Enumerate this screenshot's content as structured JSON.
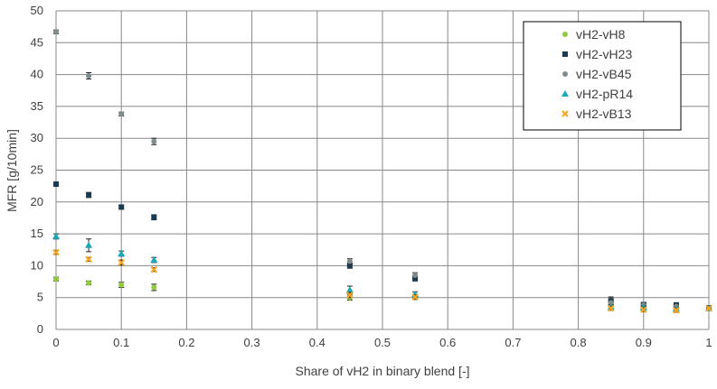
{
  "chart_data": {
    "type": "scatter",
    "title": "",
    "xlabel": "Share of vH2 in binary blend   [-]",
    "ylabel": "MFR  [g/10min]",
    "xlim": [
      0,
      1
    ],
    "ylim": [
      0,
      50
    ],
    "x_ticks": [
      "0",
      "0.1",
      "0.2",
      "0.3",
      "0.4",
      "0.5",
      "0.6",
      "0.7",
      "0.8",
      "0.9",
      "1"
    ],
    "y_ticks": [
      "0",
      "5",
      "10",
      "15",
      "20",
      "25",
      "30",
      "35",
      "40",
      "45",
      "50"
    ],
    "grid": true,
    "legend_position": "top-right",
    "series": [
      {
        "name": "vH2-vH8",
        "color": "#92c83e",
        "marker": "circle",
        "x": [
          0,
          0.05,
          0.1,
          0.15,
          0.45,
          0.55,
          0.85,
          0.9,
          0.95,
          1
        ],
        "y": [
          7.9,
          7.3,
          7.0,
          6.6,
          5.0,
          5.1,
          3.9,
          3.6,
          3.4,
          3.3
        ],
        "err": [
          0.3,
          0.3,
          0.4,
          0.5,
          0.4,
          0.4,
          0.3,
          0.3,
          0.3,
          0.2
        ]
      },
      {
        "name": "vH2-vH23",
        "color": "#1a3a52",
        "marker": "square",
        "x": [
          0,
          0.05,
          0.1,
          0.15,
          0.45,
          0.55,
          0.85,
          0.9,
          0.95,
          1
        ],
        "y": [
          22.8,
          21.1,
          19.2,
          17.6,
          10.0,
          8.0,
          4.5,
          3.9,
          3.8,
          3.4
        ],
        "err": [
          0.3,
          0.4,
          0.3,
          0.4,
          0.4,
          0.4,
          0.6,
          0.3,
          0.4,
          0.2
        ]
      },
      {
        "name": "vH2-vB45",
        "color": "#7f8c8d",
        "marker": "circle",
        "x": [
          0,
          0.05,
          0.1,
          0.15,
          0.45,
          0.55,
          0.85,
          0.9,
          0.95,
          1
        ],
        "y": [
          46.7,
          39.8,
          33.8,
          29.5,
          10.7,
          8.5,
          4.2,
          3.8,
          3.6,
          3.3
        ],
        "err": [
          0.3,
          0.5,
          0.3,
          0.5,
          0.4,
          0.4,
          0.3,
          0.3,
          0.3,
          0.2
        ]
      },
      {
        "name": "vH2-pR14",
        "color": "#17a9ba",
        "marker": "triangle",
        "x": [
          0,
          0.05,
          0.1,
          0.15,
          0.45,
          0.55,
          0.85,
          0.9,
          0.95,
          1
        ],
        "y": [
          14.6,
          13.2,
          11.9,
          10.9,
          6.2,
          5.5,
          3.5,
          3.4,
          3.2,
          3.3
        ],
        "err": [
          0.4,
          1.0,
          0.4,
          0.4,
          0.6,
          0.4,
          0.3,
          0.3,
          0.3,
          0.2
        ]
      },
      {
        "name": "vH2-vB13",
        "color": "#f5a623",
        "marker": "x",
        "x": [
          0,
          0.05,
          0.1,
          0.15,
          0.45,
          0.55,
          0.85,
          0.9,
          0.95,
          1
        ],
        "y": [
          12.1,
          11.0,
          10.5,
          9.4,
          5.4,
          5.1,
          3.3,
          3.1,
          3.0,
          3.3
        ],
        "err": [
          0.3,
          0.3,
          0.4,
          0.3,
          0.4,
          0.3,
          0.3,
          0.3,
          0.3,
          0.2
        ]
      }
    ]
  }
}
